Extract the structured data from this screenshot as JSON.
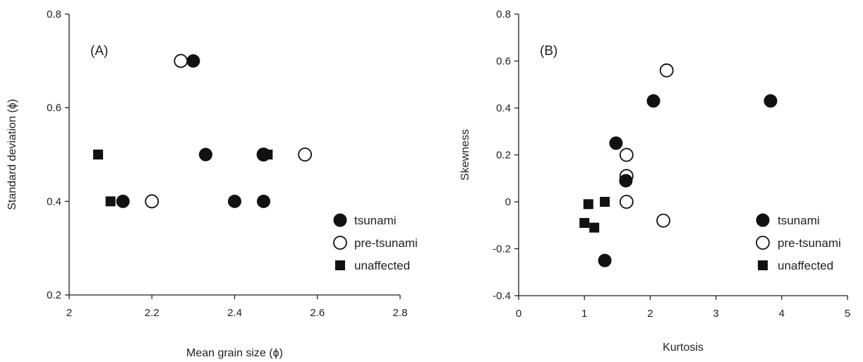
{
  "chart_data": [
    {
      "type": "scatter",
      "panel_label": "(A)",
      "xlabel": "Mean grain size (ϕ)",
      "ylabel": "Standard deviation (ϕ)",
      "xlim": [
        2,
        2.8
      ],
      "ylim": [
        0.2,
        0.8
      ],
      "xticks": [
        2,
        2.2,
        2.4,
        2.6,
        2.8
      ],
      "yticks": [
        0.2,
        0.4,
        0.6,
        0.8
      ],
      "xtick_labels": [
        "2",
        "2.2",
        "2.4",
        "2.6",
        "2.8"
      ],
      "ytick_labels": [
        "0.2",
        "0.4",
        "0.6",
        "0.8"
      ],
      "grid": false,
      "legend": "bottom-right",
      "series": [
        {
          "name": "tsunami",
          "marker": "filled-circle",
          "points": [
            [
              2.3,
              0.7
            ],
            [
              2.33,
              0.5
            ],
            [
              2.13,
              0.4
            ],
            [
              2.4,
              0.4
            ],
            [
              2.47,
              0.4
            ],
            [
              2.47,
              0.5
            ]
          ]
        },
        {
          "name": "pre-tsunami",
          "marker": "open-circle",
          "points": [
            [
              2.27,
              0.7
            ],
            [
              2.2,
              0.4
            ],
            [
              2.57,
              0.5
            ],
            [
              2.47,
              0.5
            ]
          ]
        },
        {
          "name": "unaffected",
          "marker": "filled-square",
          "points": [
            [
              2.07,
              0.5
            ],
            [
              2.1,
              0.4
            ],
            [
              2.48,
              0.5
            ]
          ]
        }
      ]
    },
    {
      "type": "scatter",
      "panel_label": "(B)",
      "xlabel": "Kurtosis",
      "ylabel": "Skewness",
      "xlim": [
        0,
        5
      ],
      "ylim": [
        -0.4,
        0.8
      ],
      "xticks": [
        0,
        1,
        2,
        3,
        4,
        5
      ],
      "yticks": [
        -0.4,
        -0.2,
        0,
        0.2,
        0.4,
        0.6,
        0.8
      ],
      "xtick_labels": [
        "0",
        "1",
        "2",
        "3",
        "4",
        "5"
      ],
      "ytick_labels": [
        "-0.4",
        "-0.2",
        "0",
        "0.2",
        "0.4",
        "0.6",
        "0.8"
      ],
      "grid": false,
      "legend": "bottom-right",
      "series": [
        {
          "name": "tsunami",
          "marker": "filled-circle",
          "points": [
            [
              2.05,
              0.43
            ],
            [
              3.83,
              0.43
            ],
            [
              1.48,
              0.25
            ],
            [
              1.63,
              0.09
            ],
            [
              1.31,
              -0.25
            ]
          ]
        },
        {
          "name": "pre-tsunami",
          "marker": "open-circle",
          "points": [
            [
              2.25,
              0.56
            ],
            [
              1.64,
              0.2
            ],
            [
              1.64,
              0.11
            ],
            [
              1.64,
              0.0
            ],
            [
              2.2,
              -0.08
            ]
          ]
        },
        {
          "name": "unaffected",
          "marker": "filled-square",
          "points": [
            [
              1.06,
              -0.01
            ],
            [
              1.31,
              0.0
            ],
            [
              1.0,
              -0.09
            ],
            [
              1.15,
              -0.11
            ]
          ]
        }
      ]
    }
  ]
}
